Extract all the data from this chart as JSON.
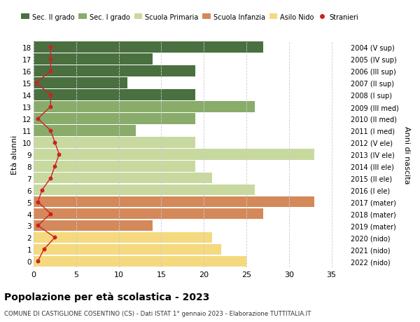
{
  "ages": [
    0,
    1,
    2,
    3,
    4,
    5,
    6,
    7,
    8,
    9,
    10,
    11,
    12,
    13,
    14,
    15,
    16,
    17,
    18
  ],
  "right_labels": [
    "2022 (nido)",
    "2021 (nido)",
    "2020 (nido)",
    "2019 (mater)",
    "2018 (mater)",
    "2017 (mater)",
    "2016 (I ele)",
    "2015 (II ele)",
    "2014 (III ele)",
    "2013 (IV ele)",
    "2012 (V ele)",
    "2011 (I med)",
    "2010 (II med)",
    "2009 (III med)",
    "2008 (I sup)",
    "2007 (II sup)",
    "2006 (III sup)",
    "2005 (IV sup)",
    "2004 (V sup)"
  ],
  "bar_values": [
    25,
    22,
    21,
    14,
    27,
    33,
    26,
    21,
    19,
    33,
    19,
    12,
    19,
    26,
    19,
    11,
    19,
    14,
    27
  ],
  "bar_colors": [
    "#f5d97e",
    "#f5d97e",
    "#f5d97e",
    "#d4895a",
    "#d4895a",
    "#d4895a",
    "#c8d9a0",
    "#c8d9a0",
    "#c8d9a0",
    "#c8d9a0",
    "#c8d9a0",
    "#8aac6b",
    "#8aac6b",
    "#8aac6b",
    "#4a7040",
    "#4a7040",
    "#4a7040",
    "#4a7040",
    "#4a7040"
  ],
  "stranieri_values": [
    0.5,
    1.2,
    2.5,
    0.5,
    2.0,
    0.5,
    1.0,
    2.0,
    2.5,
    3.0,
    2.5,
    2.0,
    0.5,
    2.0,
    2.0,
    0.3,
    2.0,
    2.0,
    2.0
  ],
  "xlim": [
    0,
    37
  ],
  "ylim": [
    -0.5,
    18.5
  ],
  "ylabel_left": "Età alunni",
  "ylabel_right": "Anni di nascita",
  "title": "Popolazione per età scolastica - 2023",
  "subtitle": "COMUNE DI CASTIGLIONE COSENTINO (CS) - Dati ISTAT 1° gennaio 2023 - Elaborazione TUTTITALIA.IT",
  "legend_labels": [
    "Sec. II grado",
    "Sec. I grado",
    "Scuola Primaria",
    "Scuola Infanzia",
    "Asilo Nido",
    "Stranieri"
  ],
  "legend_colors": [
    "#4a7040",
    "#8aac6b",
    "#c8d9a0",
    "#d4895a",
    "#f5d97e",
    "#cc2222"
  ],
  "grid_color": "#cccccc",
  "background_color": "#ffffff"
}
